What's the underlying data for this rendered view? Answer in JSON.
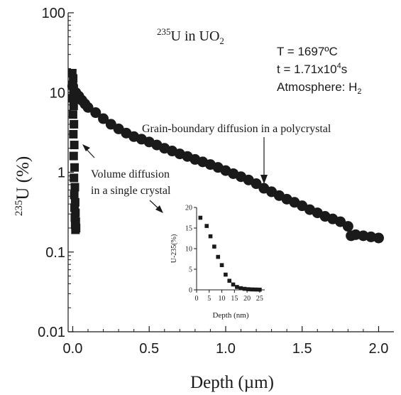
{
  "chart_data": [
    {
      "type": "scatter",
      "title": "",
      "xlabel": "Depth (µm)",
      "ylabel": "235U (%)",
      "ylabel_parts": {
        "sup": "235",
        "main": "U (%)"
      },
      "x_scale": "linear",
      "y_scale": "log",
      "xlim": [
        -0.03,
        2.1
      ],
      "ylim": [
        0.01,
        100
      ],
      "x_ticks": [
        0.0,
        0.5,
        1.0,
        1.5,
        2.0
      ],
      "x_tick_labels": [
        "0.0",
        "0.5",
        "1.0",
        "1.5",
        "2.0"
      ],
      "y_ticks": [
        0.01,
        0.1,
        1,
        10,
        100
      ],
      "y_tick_labels": [
        "0.01",
        "0.1",
        "1",
        "10",
        "100"
      ],
      "grid": false,
      "annotations": {
        "title_note": {
          "sup": "235",
          "main": "U in UO",
          "sub": "2"
        },
        "conditions": {
          "temperature": "T = 1697ºC",
          "time": {
            "prefix": "t = 1.71x10",
            "sup": "4",
            "suffix": "s"
          },
          "atmosphere": {
            "prefix": "Atmosphere: H",
            "sub": "2"
          }
        },
        "grain_boundary": "Grain-boundary diffusion in a polycrystal",
        "volume_line1": "Volume diffusion",
        "volume_line2": "in a single crystal"
      },
      "series": [
        {
          "marker": "circle",
          "color": "#1a1a1a",
          "x": [
            0.0,
            0.02,
            0.04,
            0.06,
            0.08,
            0.1,
            0.15,
            0.2,
            0.25,
            0.3,
            0.35,
            0.4,
            0.45,
            0.5,
            0.55,
            0.6,
            0.65,
            0.7,
            0.75,
            0.8,
            0.85,
            0.9,
            0.95,
            1.0,
            1.05,
            1.1,
            1.15,
            1.2,
            1.25,
            1.3,
            1.35,
            1.4,
            1.45,
            1.5,
            1.55,
            1.6,
            1.65,
            1.7,
            1.75,
            1.8,
            1.82,
            1.85,
            1.9,
            1.95,
            2.0
          ],
          "y": [
            12,
            10,
            9,
            8,
            7.2,
            6.5,
            5.6,
            4.7,
            4.0,
            3.5,
            3.1,
            2.8,
            2.6,
            2.4,
            2.2,
            2.0,
            1.85,
            1.7,
            1.58,
            1.45,
            1.35,
            1.25,
            1.15,
            1.05,
            0.96,
            0.88,
            0.8,
            0.72,
            0.63,
            0.57,
            0.51,
            0.46,
            0.42,
            0.38,
            0.34,
            0.31,
            0.28,
            0.26,
            0.24,
            0.21,
            0.16,
            0.165,
            0.16,
            0.155,
            0.15
          ]
        },
        {
          "marker": "square",
          "color": "#1a1a1a",
          "x": [
            -0.003,
            0.003,
            0.0,
            0.005,
            0.0,
            0.006,
            0.002,
            0.008,
            0.004,
            0.01,
            0.006,
            0.012,
            0.008,
            0.014,
            0.01,
            0.016,
            0.012,
            0.018,
            0.014,
            0.02,
            0.016,
            0.022,
            0.018
          ],
          "y": [
            17.5,
            15,
            12.5,
            10.5,
            8.5,
            6.8,
            5.3,
            4.0,
            3.0,
            2.2,
            1.6,
            1.15,
            0.85,
            0.65,
            0.52,
            0.42,
            0.36,
            0.31,
            0.27,
            0.24,
            0.22,
            0.2,
            0.19
          ]
        }
      ]
    },
    {
      "type": "scatter",
      "title": "",
      "xlabel": "Depth (nm)",
      "ylabel": "U-235(%)",
      "x_scale": "linear",
      "y_scale": "linear",
      "xlim": [
        0,
        27
      ],
      "ylim": [
        0,
        20
      ],
      "x_ticks": [
        0,
        5,
        10,
        15,
        20,
        25
      ],
      "x_tick_labels": [
        "0",
        "5",
        "10",
        "15",
        "20",
        "25"
      ],
      "y_ticks": [
        0,
        5,
        10,
        15,
        20
      ],
      "y_tick_labels": [
        "0",
        "5",
        "10",
        "15",
        "20"
      ],
      "grid": false,
      "series": [
        {
          "marker": "square",
          "color": "#1a1a1a",
          "x": [
            1.5,
            4,
            5.5,
            7,
            8.5,
            10,
            11.5,
            13,
            14.5,
            16,
            17.5,
            19,
            20.5,
            22,
            23.5,
            25
          ],
          "y": [
            17.5,
            15.5,
            13,
            10.5,
            8,
            6,
            3.7,
            2.2,
            1.3,
            0.7,
            0.4,
            0.25,
            0.15,
            0.1,
            0.08,
            0.05
          ]
        }
      ]
    }
  ]
}
